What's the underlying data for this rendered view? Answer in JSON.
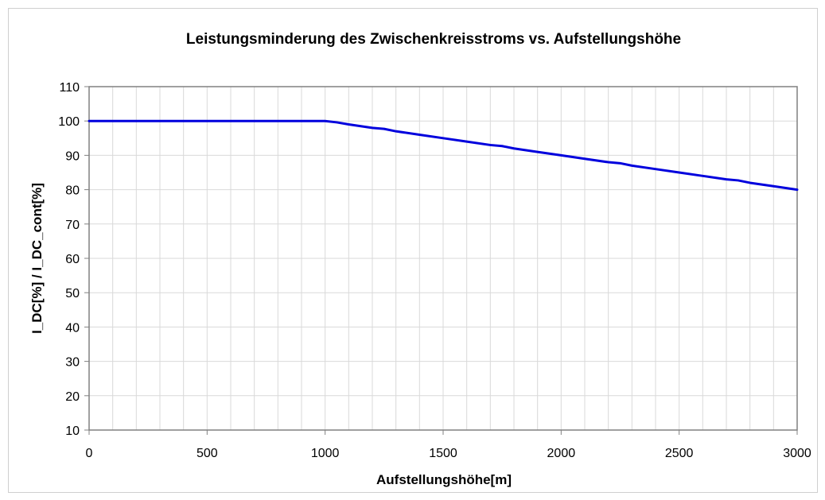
{
  "chart_data": {
    "type": "line",
    "title": "Leistungsminderung des Zwischenkreisstroms vs. Aufstellungshöhe",
    "xlabel": "Aufstellungshöhe[m]",
    "ylabel": "I_DC[%] / I_DC_cont[%]",
    "xlim": [
      0,
      3000
    ],
    "ylim": [
      10,
      110
    ],
    "x_ticks": [
      0,
      500,
      1000,
      1500,
      2000,
      2500,
      3000
    ],
    "x_tick_labels": [
      "0",
      "500",
      "1000",
      "1500",
      "2000",
      "2500",
      "3000"
    ],
    "y_ticks": [
      10,
      20,
      30,
      40,
      50,
      60,
      70,
      80,
      90,
      100,
      110
    ],
    "y_tick_labels": [
      "10",
      "20",
      "30",
      "40",
      "50",
      "60",
      "70",
      "80",
      "90",
      "100",
      "110"
    ],
    "x_minor_step": 100,
    "grid": true,
    "series": [
      {
        "color": "#0000dd",
        "x": [
          0,
          100,
          200,
          300,
          400,
          500,
          600,
          700,
          800,
          900,
          1000,
          1050,
          1100,
          1200,
          1250,
          1300,
          1400,
          1500,
          1600,
          1700,
          1750,
          1800,
          1900,
          2000,
          2100,
          2200,
          2250,
          2300,
          2400,
          2500,
          2600,
          2700,
          2750,
          2800,
          2900,
          3000
        ],
        "y": [
          100,
          100,
          100,
          100,
          100,
          100,
          100,
          100,
          100,
          100,
          100,
          99.6,
          99,
          98,
          97.7,
          97,
          96,
          95,
          94,
          93,
          92.7,
          92,
          91,
          90,
          89,
          88,
          87.7,
          87,
          86,
          85,
          84,
          83,
          82.7,
          82,
          81,
          80
        ]
      }
    ]
  }
}
